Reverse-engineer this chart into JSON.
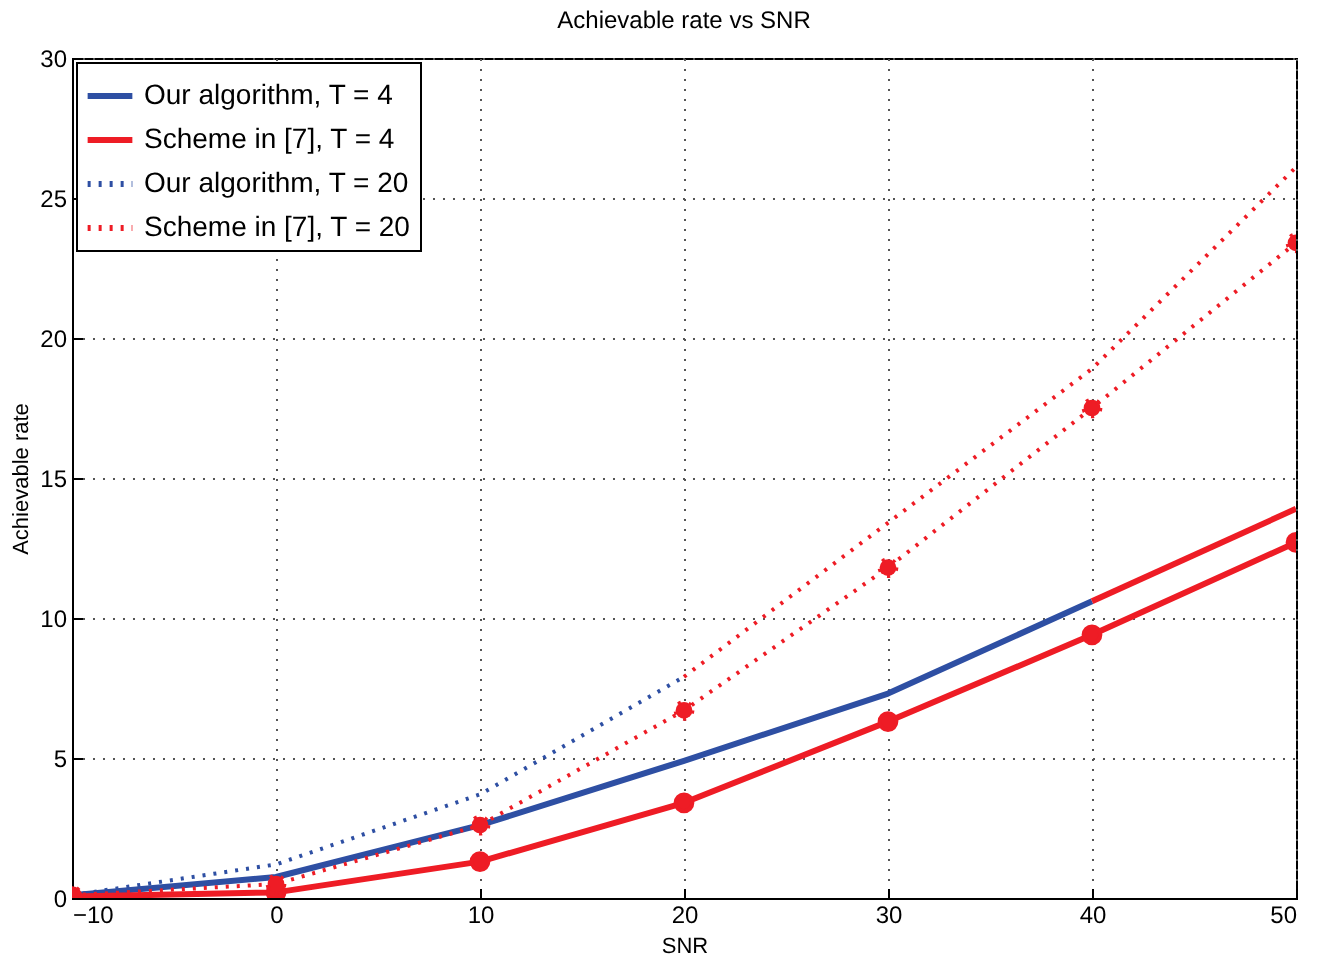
{
  "chart_data": {
    "type": "line",
    "title": "Achievable rate vs SNR",
    "xlabel": "SNR",
    "ylabel": "Achievable rate",
    "xlim": [
      -10,
      50
    ],
    "xticks": [
      -10,
      0,
      10,
      20,
      30,
      40,
      50
    ],
    "ylim": [
      0,
      30
    ],
    "yticks": [
      0,
      5,
      10,
      15,
      20,
      25,
      30
    ],
    "grid": true,
    "legend": "top left",
    "series": [
      {
        "name": "Our algorithm, T = 4",
        "color": "#2e4fa3",
        "line_style": "solid",
        "marker": "none",
        "x": [
          -10,
          0,
          10,
          20,
          30,
          40
        ],
        "values": [
          0.1,
          0.75,
          2.6,
          4.9,
          7.3,
          10.6
        ]
      },
      {
        "name": "Scheme in [7], T = 4",
        "color": "#ee1c25",
        "line_style": "solid",
        "marker": "circle",
        "x": [
          -10,
          0,
          10,
          20,
          30,
          40,
          50
        ],
        "values": [
          0.05,
          0.2,
          1.3,
          3.4,
          6.3,
          9.4,
          12.7
        ]
      },
      {
        "name": "Our algorithm, T = 20",
        "color": "#2e4fa3",
        "line_style": "dotted",
        "marker": "none",
        "x": [
          -10,
          0,
          10,
          20
        ],
        "values": [
          0.1,
          1.2,
          3.7,
          7.9
        ]
      },
      {
        "name": "Scheme in [7], T = 20",
        "color": "#ee1c25",
        "line_style": "dotted",
        "marker": "circle",
        "x": [
          -10,
          0,
          10,
          20,
          30,
          40,
          50
        ],
        "values": [
          0.1,
          0.5,
          2.6,
          6.7,
          11.8,
          17.5,
          23.4
        ]
      },
      {
        "color": "#ee1c25",
        "line_style": "solid",
        "marker": "none",
        "x": [
          40,
          50
        ],
        "values": [
          10.6,
          13.9
        ]
      },
      {
        "color": "#ee1c25",
        "line_style": "dotted",
        "marker": "none",
        "x": [
          20,
          30,
          40,
          50
        ],
        "values": [
          7.9,
          13.4,
          18.9,
          26.1
        ]
      }
    ]
  }
}
